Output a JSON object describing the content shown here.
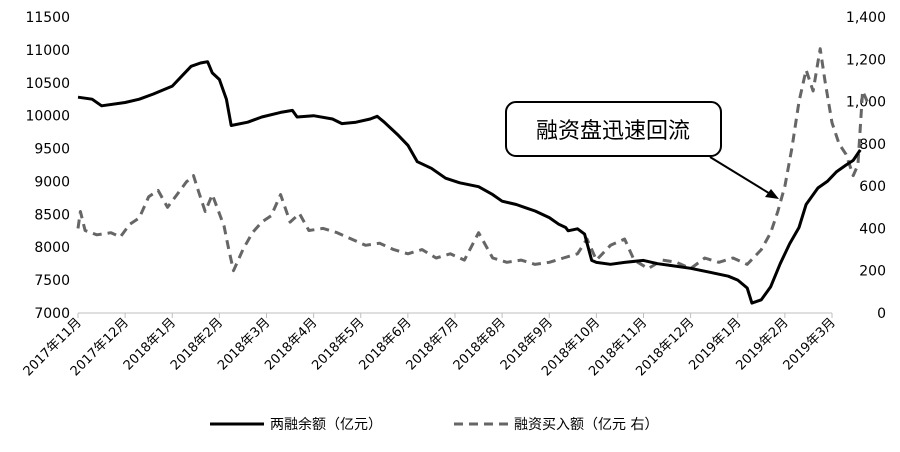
{
  "chart_data": {
    "type": "line",
    "title": "",
    "y_left": {
      "range": [
        7000,
        11500
      ],
      "ticks": [
        "11500",
        "11000",
        "10500",
        "10000",
        "9500",
        "9000",
        "8500",
        "8000",
        "7500",
        "7000"
      ],
      "tick_values": [
        11500,
        11000,
        10500,
        10000,
        9500,
        9000,
        8500,
        8000,
        7500,
        7000
      ]
    },
    "y_right": {
      "range": [
        0,
        1400
      ],
      "ticks": [
        "1,400",
        "1,200",
        "1,000",
        "800",
        "600",
        "400",
        "200",
        "0"
      ],
      "tick_values": [
        1400,
        1200,
        1000,
        800,
        600,
        400,
        200,
        0
      ]
    },
    "x_ticks": [
      "2017年11月",
      "2017年12月",
      "2018年1月",
      "2018年2月",
      "2018年3月",
      "2018年4月",
      "2018年5月",
      "2018年6月",
      "2018年7月",
      "2018年8月",
      "2018年9月",
      "2018年10月",
      "2018年11月",
      "2018年12月",
      "2019年1月",
      "2019年2月",
      "2019年3月"
    ],
    "series": [
      {
        "name": "两融余额（亿元）",
        "axis": "left",
        "style": "solid",
        "color": "#000000",
        "points": [
          [
            0.0,
            10280
          ],
          [
            0.3,
            10250
          ],
          [
            0.5,
            10150
          ],
          [
            1.0,
            10200
          ],
          [
            1.3,
            10250
          ],
          [
            1.6,
            10330
          ],
          [
            2.0,
            10450
          ],
          [
            2.2,
            10600
          ],
          [
            2.4,
            10750
          ],
          [
            2.6,
            10800
          ],
          [
            2.75,
            10820
          ],
          [
            2.85,
            10650
          ],
          [
            3.0,
            10550
          ],
          [
            3.15,
            10250
          ],
          [
            3.25,
            9850
          ],
          [
            3.6,
            9900
          ],
          [
            3.9,
            9980
          ],
          [
            4.3,
            10050
          ],
          [
            4.55,
            10080
          ],
          [
            4.65,
            9980
          ],
          [
            5.0,
            10000
          ],
          [
            5.4,
            9950
          ],
          [
            5.6,
            9880
          ],
          [
            5.9,
            9900
          ],
          [
            6.2,
            9950
          ],
          [
            6.35,
            9990
          ],
          [
            6.5,
            9900
          ],
          [
            6.8,
            9700
          ],
          [
            7.0,
            9550
          ],
          [
            7.2,
            9300
          ],
          [
            7.5,
            9200
          ],
          [
            7.8,
            9050
          ],
          [
            8.1,
            8980
          ],
          [
            8.5,
            8920
          ],
          [
            8.8,
            8800
          ],
          [
            9.0,
            8700
          ],
          [
            9.3,
            8650
          ],
          [
            9.5,
            8600
          ],
          [
            9.7,
            8550
          ],
          [
            10.0,
            8450
          ],
          [
            10.2,
            8350
          ],
          [
            10.35,
            8300
          ],
          [
            10.4,
            8250
          ],
          [
            10.6,
            8280
          ],
          [
            10.75,
            8200
          ],
          [
            10.9,
            7800
          ],
          [
            11.0,
            7770
          ],
          [
            11.3,
            7740
          ],
          [
            11.6,
            7770
          ],
          [
            12.0,
            7800
          ],
          [
            12.3,
            7750
          ],
          [
            12.6,
            7720
          ],
          [
            13.0,
            7680
          ],
          [
            13.4,
            7620
          ],
          [
            13.8,
            7560
          ],
          [
            14.0,
            7500
          ],
          [
            14.2,
            7380
          ],
          [
            14.3,
            7150
          ],
          [
            14.5,
            7200
          ],
          [
            14.7,
            7400
          ],
          [
            14.9,
            7750
          ],
          [
            15.1,
            8050
          ],
          [
            15.3,
            8300
          ],
          [
            15.45,
            8650
          ],
          [
            15.7,
            8900
          ],
          [
            15.9,
            9000
          ],
          [
            16.1,
            9150
          ],
          [
            16.3,
            9250
          ],
          [
            16.45,
            9320
          ],
          [
            16.6,
            9480
          ]
        ]
      },
      {
        "name": "融资买入额（亿元 右）",
        "axis": "right",
        "style": "dashed",
        "color": "#666666",
        "points": [
          [
            0.0,
            400
          ],
          [
            0.05,
            480
          ],
          [
            0.15,
            390
          ],
          [
            0.4,
            370
          ],
          [
            0.7,
            380
          ],
          [
            0.9,
            360
          ],
          [
            1.1,
            420
          ],
          [
            1.3,
            450
          ],
          [
            1.5,
            550
          ],
          [
            1.7,
            580
          ],
          [
            1.9,
            500
          ],
          [
            2.1,
            560
          ],
          [
            2.3,
            620
          ],
          [
            2.45,
            650
          ],
          [
            2.55,
            580
          ],
          [
            2.7,
            480
          ],
          [
            2.85,
            560
          ],
          [
            3.0,
            470
          ],
          [
            3.1,
            410
          ],
          [
            3.2,
            300
          ],
          [
            3.3,
            200
          ],
          [
            3.5,
            300
          ],
          [
            3.7,
            380
          ],
          [
            3.9,
            430
          ],
          [
            4.1,
            460
          ],
          [
            4.3,
            560
          ],
          [
            4.5,
            430
          ],
          [
            4.7,
            470
          ],
          [
            4.9,
            390
          ],
          [
            5.2,
            400
          ],
          [
            5.5,
            380
          ],
          [
            5.8,
            350
          ],
          [
            6.1,
            320
          ],
          [
            6.4,
            330
          ],
          [
            6.7,
            300
          ],
          [
            7.0,
            280
          ],
          [
            7.3,
            300
          ],
          [
            7.6,
            260
          ],
          [
            7.9,
            280
          ],
          [
            8.2,
            250
          ],
          [
            8.5,
            380
          ],
          [
            8.8,
            260
          ],
          [
            9.1,
            240
          ],
          [
            9.4,
            250
          ],
          [
            9.7,
            230
          ],
          [
            10.0,
            240
          ],
          [
            10.3,
            260
          ],
          [
            10.6,
            280
          ],
          [
            10.8,
            350
          ],
          [
            11.0,
            250
          ],
          [
            11.3,
            320
          ],
          [
            11.6,
            350
          ],
          [
            11.8,
            250
          ],
          [
            12.1,
            210
          ],
          [
            12.4,
            250
          ],
          [
            12.7,
            240
          ],
          [
            13.0,
            210
          ],
          [
            13.3,
            260
          ],
          [
            13.6,
            240
          ],
          [
            13.9,
            260
          ],
          [
            14.2,
            230
          ],
          [
            14.5,
            300
          ],
          [
            14.7,
            380
          ],
          [
            14.85,
            480
          ],
          [
            15.0,
            600
          ],
          [
            15.15,
            780
          ],
          [
            15.3,
            1000
          ],
          [
            15.45,
            1150
          ],
          [
            15.6,
            1050
          ],
          [
            15.75,
            1250
          ],
          [
            15.85,
            1100
          ],
          [
            16.0,
            900
          ],
          [
            16.15,
            800
          ],
          [
            16.3,
            750
          ],
          [
            16.45,
            650
          ],
          [
            16.55,
            700
          ],
          [
            16.65,
            1050
          ],
          [
            16.75,
            1000
          ]
        ]
      }
    ],
    "legend": {
      "position": "bottom",
      "items": [
        "两融余额（亿元）",
        "融资买入额（亿元 右）"
      ]
    },
    "annotation": {
      "text": "融资盘迅速回流"
    }
  }
}
